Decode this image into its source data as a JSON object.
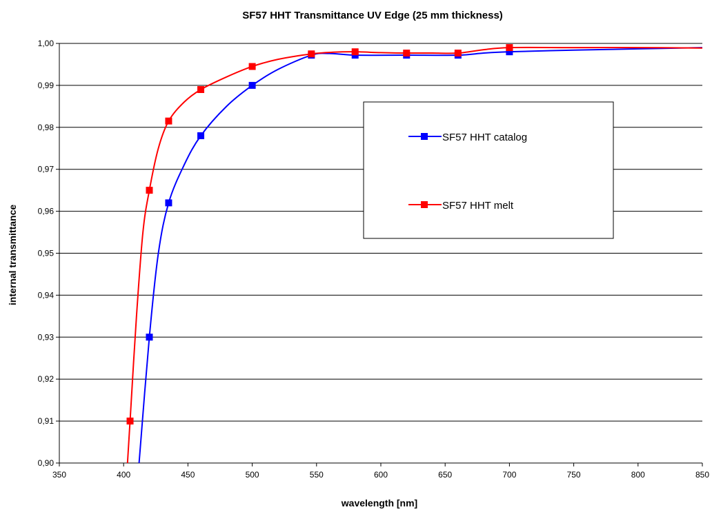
{
  "chart_data": {
    "type": "line",
    "title": "SF57 HHT  Transmittance UV Edge (25 mm thickness)",
    "xlabel": "wavelength [nm]",
    "ylabel": "internal transmittance",
    "xlim": [
      350,
      850
    ],
    "ylim": [
      0.9,
      1.0
    ],
    "x_ticks": [
      350,
      400,
      450,
      500,
      550,
      600,
      650,
      700,
      750,
      800,
      850
    ],
    "y_ticks": [
      0.9,
      0.91,
      0.92,
      0.93,
      0.94,
      0.95,
      0.96,
      0.97,
      0.98,
      0.99,
      1.0
    ],
    "x_tick_labels": [
      "350",
      "400",
      "450",
      "500",
      "550",
      "600",
      "650",
      "700",
      "750",
      "800",
      "850"
    ],
    "y_tick_labels": [
      "0,90",
      "0,91",
      "0,92",
      "0,93",
      "0,94",
      "0,95",
      "0,96",
      "0,97",
      "0,98",
      "0,99",
      "1,00"
    ],
    "grid": "horizontal",
    "legend_position": "center-right",
    "series": [
      {
        "name": "SF57 HHT catalog",
        "color": "#0000ff",
        "marker": "square",
        "x": [
          420,
          435,
          460,
          500,
          546,
          580,
          620,
          660,
          700
        ],
        "y": [
          0.93,
          0.962,
          0.978,
          0.99,
          0.9972,
          0.9972,
          0.9972,
          0.9972,
          0.998
        ],
        "curve": [
          [
            412,
            0.9
          ],
          [
            420,
            0.93
          ],
          [
            427,
            0.95
          ],
          [
            435,
            0.962
          ],
          [
            447,
            0.971
          ],
          [
            460,
            0.978
          ],
          [
            480,
            0.985
          ],
          [
            500,
            0.99
          ],
          [
            520,
            0.9938
          ],
          [
            546,
            0.9972
          ],
          [
            560,
            0.9976
          ],
          [
            580,
            0.9972
          ],
          [
            620,
            0.9972
          ],
          [
            660,
            0.9972
          ],
          [
            680,
            0.9977
          ],
          [
            700,
            0.998
          ],
          [
            750,
            0.9984
          ],
          [
            800,
            0.9987
          ],
          [
            850,
            0.999
          ]
        ]
      },
      {
        "name": "SF57 HHT  melt",
        "color": "#ff0000",
        "marker": "square",
        "x": [
          405,
          420,
          435,
          460,
          500,
          546,
          580,
          620,
          660,
          700
        ],
        "y": [
          0.91,
          0.965,
          0.9815,
          0.989,
          0.9945,
          0.9975,
          0.998,
          0.9977,
          0.9977,
          0.999
        ],
        "curve": [
          [
            403,
            0.9
          ],
          [
            405,
            0.91
          ],
          [
            410,
            0.935
          ],
          [
            415,
            0.955
          ],
          [
            420,
            0.965
          ],
          [
            427,
            0.975
          ],
          [
            435,
            0.9815
          ],
          [
            447,
            0.986
          ],
          [
            460,
            0.989
          ],
          [
            480,
            0.992
          ],
          [
            500,
            0.9945
          ],
          [
            520,
            0.9962
          ],
          [
            546,
            0.9975
          ],
          [
            563,
            0.9979
          ],
          [
            580,
            0.998
          ],
          [
            600,
            0.9978
          ],
          [
            620,
            0.9977
          ],
          [
            640,
            0.9977
          ],
          [
            660,
            0.9977
          ],
          [
            680,
            0.9985
          ],
          [
            700,
            0.999
          ],
          [
            750,
            0.999
          ],
          [
            800,
            0.999
          ],
          [
            850,
            0.9989
          ]
        ]
      }
    ]
  }
}
